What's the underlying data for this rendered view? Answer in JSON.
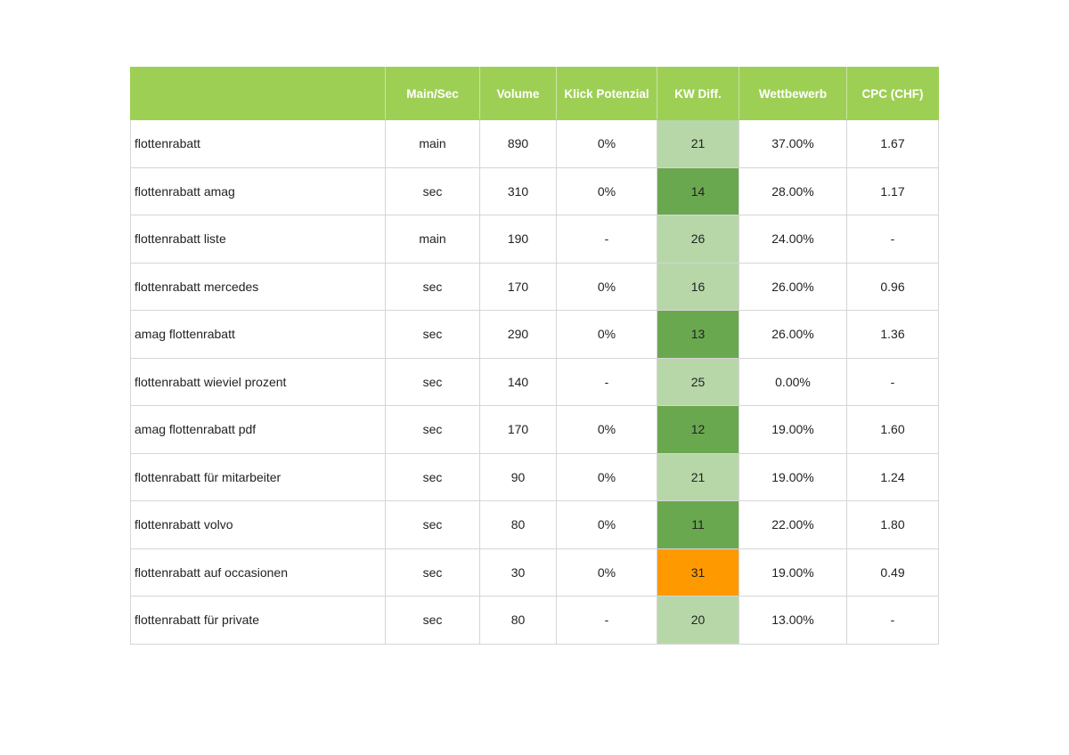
{
  "table": {
    "headers": [
      "",
      "Main/Sec",
      "Volume",
      "Klick Potenzial",
      "KW Diff.",
      "Wettbewerb",
      "CPC (CHF)"
    ],
    "rows": [
      {
        "keyword": "flottenrabatt",
        "main_sec": "main",
        "volume": "890",
        "klick": "0%",
        "kw_diff": "21",
        "diff_color": "#b7d7a8",
        "wettbewerb": "37.00%",
        "cpc": "1.67"
      },
      {
        "keyword": "flottenrabatt amag",
        "main_sec": "sec",
        "volume": "310",
        "klick": "0%",
        "kw_diff": "14",
        "diff_color": "#6aa84f",
        "wettbewerb": "28.00%",
        "cpc": "1.17"
      },
      {
        "keyword": "flottenrabatt liste",
        "main_sec": "main",
        "volume": "190",
        "klick": "-",
        "kw_diff": "26",
        "diff_color": "#b7d7a8",
        "wettbewerb": "24.00%",
        "cpc": "-"
      },
      {
        "keyword": "flottenrabatt mercedes",
        "main_sec": "sec",
        "volume": "170",
        "klick": "0%",
        "kw_diff": "16",
        "diff_color": "#b7d7a8",
        "wettbewerb": "26.00%",
        "cpc": "0.96"
      },
      {
        "keyword": "amag flottenrabatt",
        "main_sec": "sec",
        "volume": "290",
        "klick": "0%",
        "kw_diff": "13",
        "diff_color": "#6aa84f",
        "wettbewerb": "26.00%",
        "cpc": "1.36"
      },
      {
        "keyword": "flottenrabatt wieviel prozent",
        "main_sec": "sec",
        "volume": "140",
        "klick": "-",
        "kw_diff": "25",
        "diff_color": "#b7d7a8",
        "wettbewerb": "0.00%",
        "cpc": "-"
      },
      {
        "keyword": "amag flottenrabatt pdf",
        "main_sec": "sec",
        "volume": "170",
        "klick": "0%",
        "kw_diff": "12",
        "diff_color": "#6aa84f",
        "wettbewerb": "19.00%",
        "cpc": "1.60"
      },
      {
        "keyword": "flottenrabatt für mitarbeiter",
        "main_sec": "sec",
        "volume": "90",
        "klick": "0%",
        "kw_diff": "21",
        "diff_color": "#b7d7a8",
        "wettbewerb": "19.00%",
        "cpc": "1.24"
      },
      {
        "keyword": "flottenrabatt volvo",
        "main_sec": "sec",
        "volume": "80",
        "klick": "0%",
        "kw_diff": "11",
        "diff_color": "#6aa84f",
        "wettbewerb": "22.00%",
        "cpc": "1.80"
      },
      {
        "keyword": "flottenrabatt auf occasionen",
        "main_sec": "sec",
        "volume": "30",
        "klick": "0%",
        "kw_diff": "31",
        "diff_color": "#ff9900",
        "wettbewerb": "19.00%",
        "cpc": "0.49"
      },
      {
        "keyword": "flottenrabatt für private",
        "main_sec": "sec",
        "volume": "80",
        "klick": "-",
        "kw_diff": "20",
        "diff_color": "#b7d7a8",
        "wettbewerb": "13.00%",
        "cpc": "-"
      }
    ]
  },
  "colors": {
    "header_bg": "#9ecf55",
    "header_text": "#ffffff",
    "diff_light": "#b7d7a8",
    "diff_dark": "#6aa84f",
    "diff_orange": "#ff9900",
    "grid": "#d6d6d6"
  }
}
